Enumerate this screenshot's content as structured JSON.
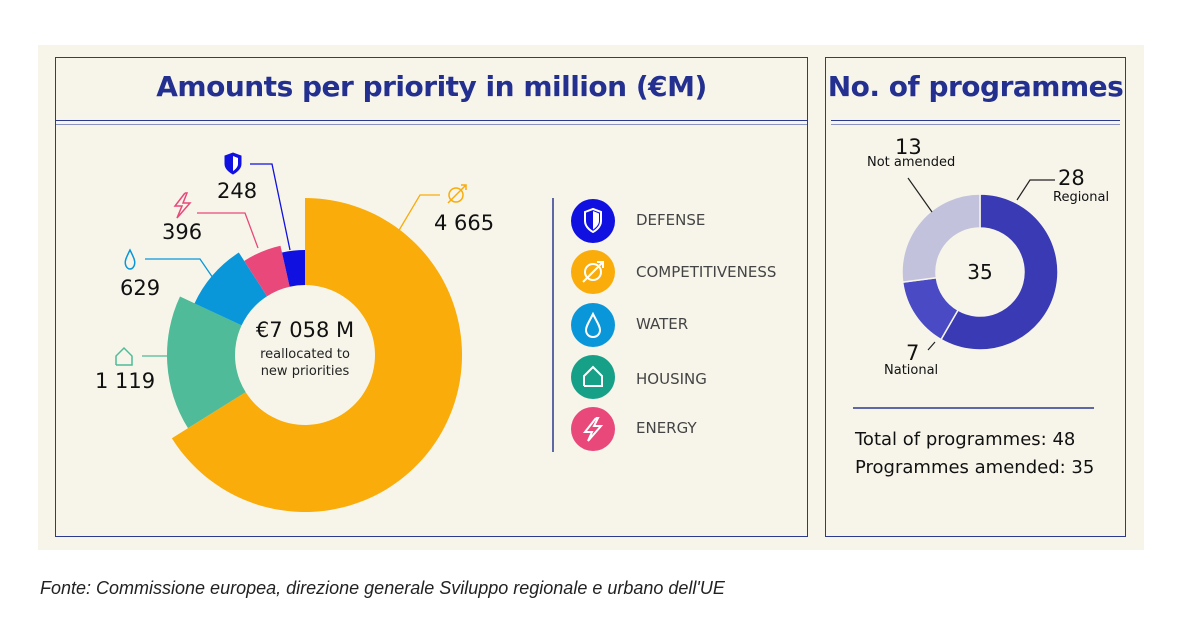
{
  "chart_data": [
    {
      "type": "pie",
      "title": "Amounts per priority in million (€M)",
      "center_value": "€7 058 M",
      "center_label": "reallocated to new priorities",
      "slices": [
        {
          "name": "COMPETITIVENESS",
          "value": 4665,
          "label": "4 665",
          "color": "#f9ac0a",
          "icon": "competitiveness-icon"
        },
        {
          "name": "HOUSING",
          "value": 1119,
          "label": "1 119",
          "color": "#4fbb98",
          "icon": "house-icon"
        },
        {
          "name": "WATER",
          "value": 629,
          "label": "629",
          "color": "#0a97d9",
          "icon": "water-drop-icon"
        },
        {
          "name": "ENERGY",
          "value": 396,
          "label": "396",
          "color": "#e8487a",
          "icon": "lightning-icon"
        },
        {
          "name": "DEFENSE",
          "value": 248,
          "label": "248",
          "color": "#1010e0",
          "icon": "shield-icon"
        }
      ],
      "legend": [
        "DEFENSE",
        "COMPETITIVENESS",
        "WATER",
        "HOUSING",
        "ENERGY"
      ],
      "legend_placement": "right"
    },
    {
      "type": "pie",
      "title": "No. of programmes",
      "center_value": "35",
      "slices": [
        {
          "name": "Regional",
          "value": 28,
          "label": "28",
          "color": "#3a3ab4"
        },
        {
          "name": "National",
          "value": 7,
          "label": "7",
          "color": "#4a4ac4"
        },
        {
          "name": "Not amended",
          "value": 13,
          "label": "13",
          "color": "#c2c2dc"
        }
      ]
    }
  ],
  "stats": {
    "total": "Total of programmes: 48",
    "amended": "Programmes amended: 35"
  },
  "caption": "Fonte: Commissione europea, direzione generale Sviluppo regionale e urbano dell'UE"
}
